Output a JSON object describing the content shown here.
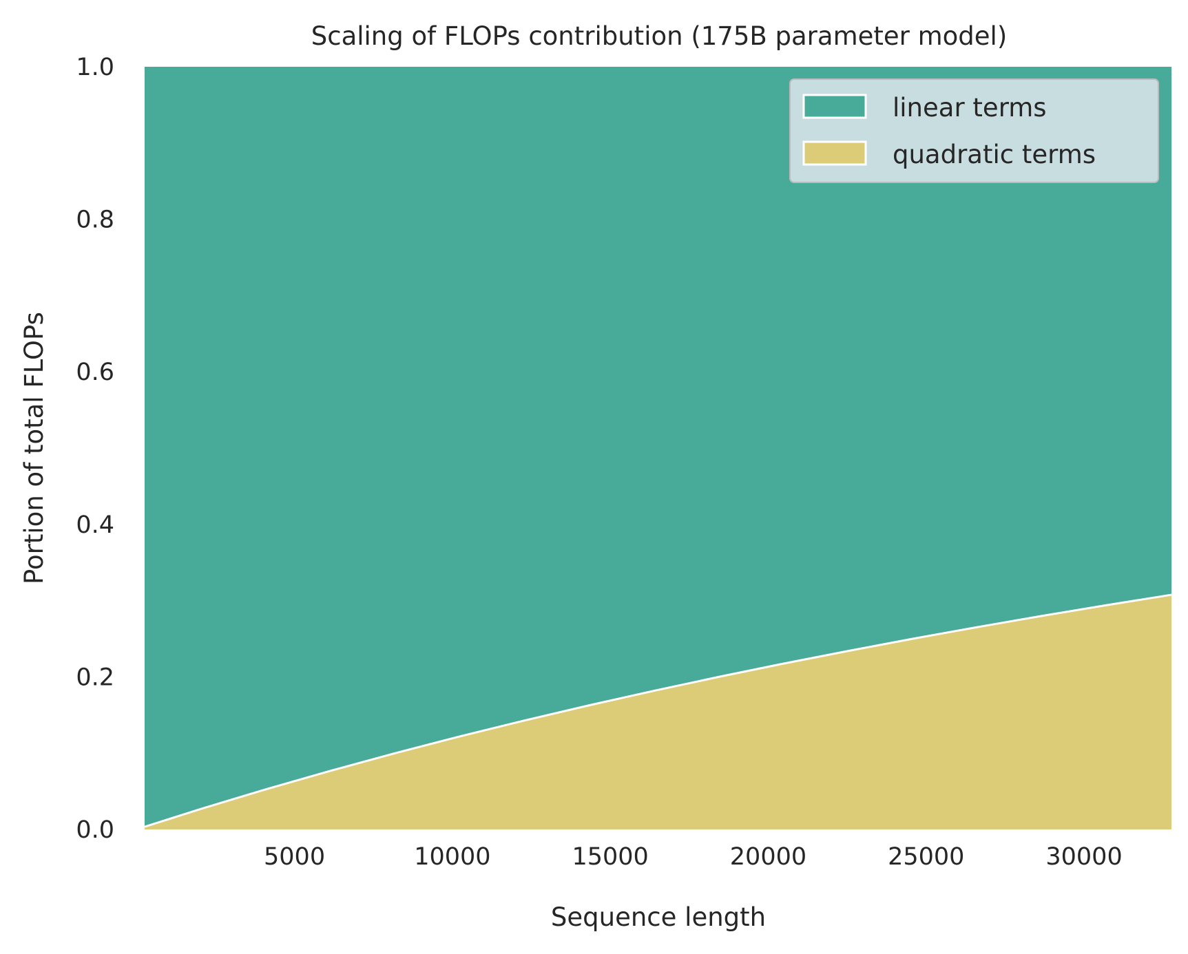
{
  "chart_data": {
    "type": "area",
    "stacked": true,
    "title": "Scaling of FLOPs contribution (175B parameter model)",
    "xlabel": "Sequence length",
    "ylabel": "Portion of total FLOPs",
    "xlim": [
      256,
      32768
    ],
    "ylim": [
      0,
      1
    ],
    "xticks": [
      5000,
      10000,
      15000,
      20000,
      25000,
      30000
    ],
    "xtick_labels": [
      "5000",
      "10000",
      "15000",
      "20000",
      "25000",
      "30000"
    ],
    "yticks": [
      0,
      0.2,
      0.4,
      0.6,
      0.8,
      1.0
    ],
    "ytick_labels": [
      "0.0",
      "0.2",
      "0.4",
      "0.6",
      "0.8",
      "1.0"
    ],
    "grid": false,
    "legend_position": "upper-right",
    "x": [
      256,
      2048,
      4096,
      6144,
      8192,
      10240,
      12288,
      14336,
      16384,
      18432,
      20480,
      22528,
      24576,
      26624,
      28672,
      30720,
      32768
    ],
    "series": [
      {
        "name": "linear terms",
        "color": "#48aa99",
        "values": [
          0.9965,
          0.973,
          0.9474,
          0.9231,
          0.9,
          0.878,
          0.8571,
          0.8372,
          0.8182,
          0.8,
          0.7826,
          0.766,
          0.75,
          0.7347,
          0.72,
          0.7059,
          0.6923
        ]
      },
      {
        "name": "quadratic terms",
        "color": "#dccc78",
        "values": [
          0.0035,
          0.027,
          0.0526,
          0.0769,
          0.1,
          0.122,
          0.1429,
          0.1628,
          0.1818,
          0.2,
          0.2174,
          0.234,
          0.25,
          0.2653,
          0.28,
          0.2941,
          0.3077
        ]
      }
    ]
  }
}
